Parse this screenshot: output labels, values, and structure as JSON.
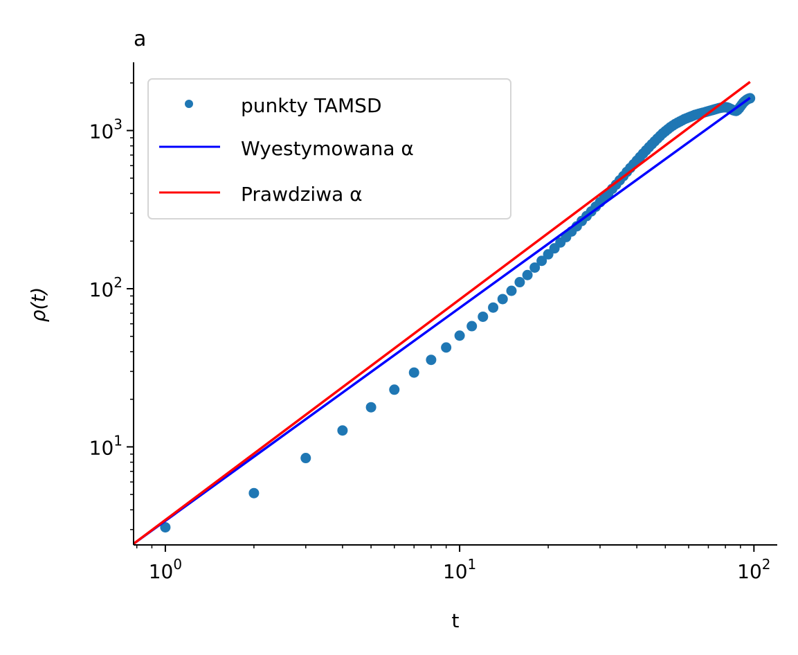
{
  "chart_data": {
    "type": "scatter",
    "title": "a",
    "xlabel": "t",
    "ylabel": "ρ(t)",
    "xscale": "log",
    "yscale": "log",
    "xlim": [
      0.78,
      120
    ],
    "ylim": [
      2.4,
      2700
    ],
    "x_ticks": [
      {
        "value": 1,
        "base": "10",
        "exp": "0"
      },
      {
        "value": 10,
        "base": "10",
        "exp": "1"
      },
      {
        "value": 100,
        "base": "10",
        "exp": "2"
      }
    ],
    "y_ticks": [
      {
        "value": 10,
        "base": "10",
        "exp": "1"
      },
      {
        "value": 100,
        "base": "10",
        "exp": "2"
      },
      {
        "value": 1000,
        "base": "10",
        "exp": "3"
      }
    ],
    "grid": false,
    "legend_position": "top-left",
    "series": [
      {
        "name": "punkty TAMSD",
        "kind": "points",
        "color": "#1f77b4",
        "x": [
          1,
          2,
          3,
          4,
          5,
          6,
          7,
          8,
          9,
          10,
          11,
          12,
          13,
          14,
          15,
          16,
          17,
          18,
          19,
          20,
          21,
          22,
          23,
          24,
          25,
          26,
          27,
          28,
          29,
          30,
          31,
          32,
          33,
          34,
          35,
          36,
          37,
          38,
          39,
          40,
          41,
          42,
          43,
          44,
          45,
          46,
          47,
          48,
          49,
          50,
          51,
          52,
          53,
          54,
          55,
          56,
          57,
          58,
          59,
          60,
          61,
          62,
          63,
          64,
          65,
          66,
          67,
          68,
          69,
          70,
          71,
          72,
          73,
          74,
          75,
          76,
          77,
          78,
          79,
          80,
          81,
          82,
          83,
          84,
          85,
          86,
          87,
          88,
          89,
          90,
          91,
          92,
          93,
          94,
          95,
          96,
          97
        ],
        "y": [
          3.1,
          5.1,
          8.5,
          12.7,
          17.8,
          23,
          29.5,
          35.5,
          42.5,
          50.5,
          58,
          66.5,
          76,
          86,
          97,
          110,
          122,
          136,
          150,
          165,
          180,
          196,
          212,
          230,
          248,
          268,
          288,
          308,
          330,
          352,
          375,
          400,
          428,
          455,
          485,
          515,
          548,
          580,
          612,
          645,
          680,
          715,
          750,
          785,
          820,
          855,
          890,
          925,
          960,
          990,
          1020,
          1050,
          1075,
          1100,
          1120,
          1140,
          1160,
          1180,
          1195,
          1210,
          1225,
          1240,
          1255,
          1265,
          1275,
          1285,
          1295,
          1305,
          1315,
          1325,
          1335,
          1345,
          1355,
          1365,
          1375,
          1385,
          1392,
          1398,
          1402,
          1405,
          1400,
          1390,
          1375,
          1360,
          1345,
          1335,
          1330,
          1350,
          1380,
          1420,
          1460,
          1500,
          1530,
          1555,
          1575,
          1590,
          1600
        ]
      },
      {
        "name": "Wyestymowana α",
        "kind": "line",
        "color": "#0000ff",
        "x": [
          0.78,
          97
        ],
        "y": [
          2.44,
          1610
        ]
      },
      {
        "name": "Prawdziwa α",
        "kind": "line",
        "color": "#ff0000",
        "x": [
          0.78,
          97
        ],
        "y": [
          2.44,
          2030
        ]
      }
    ]
  }
}
